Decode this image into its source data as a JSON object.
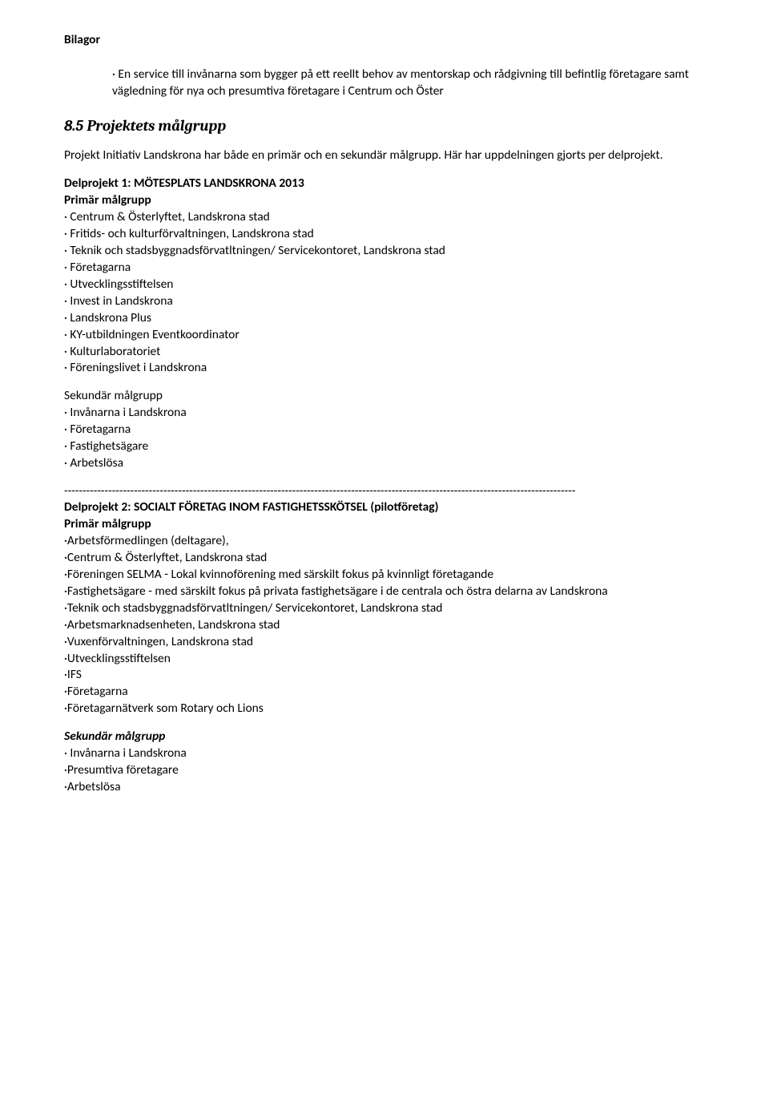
{
  "header": "Bilagor",
  "intro": "· En service till invånarna som bygger på ett reellt behov av mentorskap och rådgivning till befintlig företagare samt vägledning för nya och presumtiva företagare i Centrum och Öster",
  "sectionHeading": "8.5 Projektets målgrupp",
  "sectionIntro": "Projekt Initiativ Landskrona har både en primär och en sekundär målgrupp. Här har uppdelningen gjorts per delprojekt.",
  "dp1": {
    "title": "Delprojekt 1: MÖTESPLATS LANDSKRONA 2013",
    "primLabel": "Primär målgrupp",
    "primItems": [
      "· Centrum & Österlyftet, Landskrona stad",
      "· Fritids- och kulturförvaltningen, Landskrona stad",
      "· Teknik och stadsbyggnadsförvatltningen/ Servicekontoret, Landskrona stad",
      "· Företagarna",
      "· Utvecklingsstiftelsen",
      "· Invest in Landskrona",
      "· Landskrona Plus",
      "· KY-utbildningen Eventkoordinator",
      "· Kulturlaboratoriet",
      "· Föreningslivet i Landskrona"
    ],
    "sekLabel": "Sekundär målgrupp",
    "sekItems": [
      "· Invånarna i Landskrona",
      "· Företagarna",
      "· Fastighetsägare",
      "· Arbetslösa"
    ]
  },
  "separator": "-------------------------------------------------------------------------------------------------------------------------------------------",
  "dp2": {
    "title": "Delprojekt 2: SOCIALT FÖRETAG INOM FASTIGHETSSKÖTSEL (pilotföretag)",
    "primLabel": "Primär målgrupp",
    "primItems": [
      "·Arbetsförmedlingen (deltagare),",
      "·Centrum & Österlyftet, Landskrona stad",
      "·Föreningen SELMA - Lokal kvinnoförening med särskilt fokus på kvinnligt företagande",
      "·Fastighetsägare - med särskilt fokus på privata fastighetsägare i de centrala och östra delarna av Landskrona",
      "·Teknik och stadsbyggnadsförvatltningen/ Servicekontoret, Landskrona stad",
      "·Arbetsmarknadsenheten, Landskrona stad",
      "·Vuxenförvaltningen, Landskrona stad",
      "·Utvecklingsstiftelsen",
      "·IFS",
      "·Företagarna",
      "·Företagarnätverk som Rotary och Lions"
    ],
    "sekLabel": "Sekundär målgrupp",
    "sekItems": [
      "· Invånarna i Landskrona",
      "·Presumtiva företagare",
      "·Arbetslösa"
    ]
  }
}
